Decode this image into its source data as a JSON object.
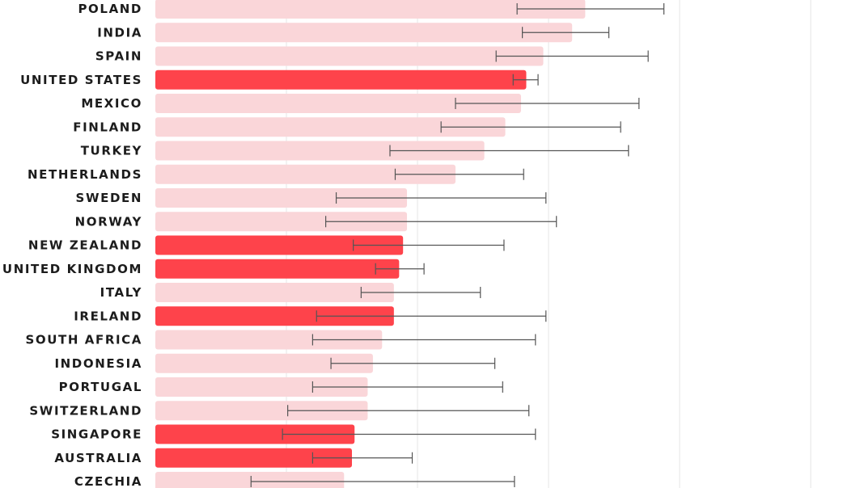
{
  "chart_data": {
    "type": "bar",
    "orientation": "horizontal",
    "title": "",
    "xlabel": "",
    "ylabel": "",
    "xlim": [
      0,
      5
    ],
    "grid": true,
    "categories": [
      "POLAND",
      "INDIA",
      "SPAIN",
      "UNITED STATES",
      "MEXICO",
      "FINLAND",
      "TURKEY",
      "NETHERLANDS",
      "SWEDEN",
      "NORWAY",
      "NEW ZEALAND",
      "UNITED KINGDOM",
      "ITALY",
      "IRELAND",
      "SOUTH AFRICA",
      "INDONESIA",
      "PORTUGAL",
      "SWITZERLAND",
      "SINGAPORE",
      "AUSTRALIA",
      "CZECHIA"
    ],
    "values": [
      3.28,
      3.18,
      2.96,
      2.83,
      2.79,
      2.67,
      2.51,
      2.29,
      1.92,
      1.92,
      1.89,
      1.86,
      1.82,
      1.82,
      1.73,
      1.66,
      1.62,
      1.62,
      1.52,
      1.5,
      1.44
    ],
    "error_low": [
      2.76,
      2.8,
      2.6,
      2.73,
      2.29,
      2.18,
      1.79,
      1.83,
      1.38,
      1.3,
      1.51,
      1.68,
      1.57,
      1.23,
      1.2,
      1.34,
      1.2,
      1.01,
      0.97,
      1.2,
      0.73
    ],
    "error_high": [
      3.88,
      3.46,
      3.76,
      2.92,
      3.69,
      3.55,
      3.61,
      2.81,
      2.98,
      3.06,
      2.66,
      2.05,
      2.48,
      2.98,
      2.9,
      2.59,
      2.65,
      2.85,
      2.9,
      1.96,
      2.74
    ],
    "highlighted": [
      "UNITED STATES",
      "NEW ZEALAND",
      "UNITED KINGDOM",
      "IRELAND",
      "SINGAPORE",
      "AUSTRALIA"
    ],
    "colors": {
      "highlight": "#fe434b",
      "base": "#fad6d9",
      "errorbar": "#555555",
      "gridline": "#e6e6e6",
      "label": "#1c1c1c"
    }
  }
}
